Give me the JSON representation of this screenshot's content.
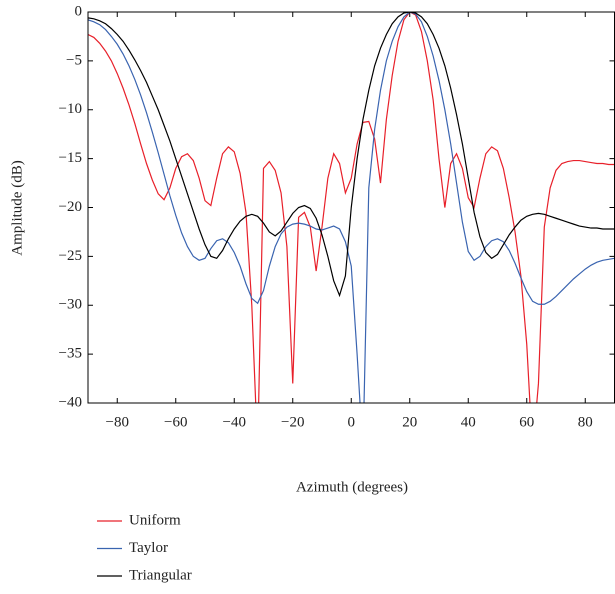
{
  "chart_data": {
    "type": "line",
    "xlabel": "Azimuth (degrees)",
    "ylabel": "Amplitude (dB)",
    "x": [
      -90,
      -88,
      -86,
      -84,
      -82,
      -80,
      -78,
      -76,
      -74,
      -72,
      -70,
      -68,
      -66,
      -64,
      -62,
      -60,
      -58,
      -56,
      -54,
      -52,
      -50,
      -48,
      -46,
      -44,
      -42,
      -40,
      -38,
      -36,
      -34,
      -32,
      -30,
      -28,
      -26,
      -24,
      -22,
      -20,
      -18,
      -16,
      -14,
      -12,
      -10,
      -8,
      -6,
      -4,
      -2,
      0,
      2,
      4,
      6,
      8,
      10,
      12,
      14,
      16,
      18,
      20,
      22,
      24,
      26,
      28,
      30,
      32,
      34,
      36,
      38,
      40,
      42,
      44,
      46,
      48,
      50,
      52,
      54,
      56,
      58,
      60,
      62,
      64,
      66,
      68,
      70,
      72,
      74,
      76,
      78,
      80,
      82,
      84,
      86,
      88,
      90
    ],
    "series": [
      {
        "name": "Uniform",
        "color": "#e8202a",
        "values": [
          -2.3,
          -2.6,
          -3.2,
          -4,
          -5,
          -6.3,
          -7.8,
          -9.5,
          -11.4,
          -13.5,
          -15.5,
          -17.2,
          -18.6,
          -19.2,
          -18,
          -16,
          -14.8,
          -14.5,
          -15.2,
          -17,
          -19.3,
          -19.8,
          -17,
          -14.5,
          -13.8,
          -14.3,
          -16.5,
          -20.5,
          -30,
          -45,
          -16,
          -15.3,
          -16.2,
          -18.5,
          -24,
          -38,
          -21,
          -20.5,
          -22,
          -26.5,
          -22,
          -17,
          -14.5,
          -15.5,
          -18.5,
          -17,
          -13.5,
          -11.3,
          -11.2,
          -13,
          -17.5,
          -11,
          -6.5,
          -3,
          -0.8,
          0,
          -0.3,
          -2,
          -5,
          -9,
          -15,
          -20,
          -15.5,
          -14.5,
          -16,
          -19,
          -20,
          -17,
          -14.5,
          -13.8,
          -14.2,
          -16,
          -19,
          -22.5,
          -27,
          -34,
          -45,
          -38,
          -22,
          -18,
          -16.2,
          -15.5,
          -15.3,
          -15.2,
          -15.2,
          -15.3,
          -15.4,
          -15.5,
          -15.5,
          -15.6,
          -15.6
        ]
      },
      {
        "name": "Taylor",
        "color": "#3a64b0",
        "values": [
          -0.8,
          -1,
          -1.3,
          -1.8,
          -2.5,
          -3.3,
          -4.3,
          -5.5,
          -6.9,
          -8.5,
          -10.3,
          -12.3,
          -14.4,
          -16.6,
          -18.8,
          -20.8,
          -22.6,
          -24,
          -25,
          -25.4,
          -25.2,
          -24.2,
          -23.4,
          -23.2,
          -23.6,
          -24.6,
          -26,
          -27.8,
          -29.3,
          -29.8,
          -28.5,
          -26,
          -24,
          -22.7,
          -22,
          -21.7,
          -21.6,
          -21.7,
          -21.9,
          -22.2,
          -22.3,
          -22.1,
          -21.9,
          -22.2,
          -23.5,
          -26,
          -35,
          -45,
          -18,
          -12,
          -8,
          -5,
          -3,
          -1.5,
          -0.5,
          0,
          -0.2,
          -1,
          -2.5,
          -4.5,
          -7,
          -10,
          -13.5,
          -17.5,
          -21.5,
          -24.5,
          -25.4,
          -25,
          -24,
          -23.4,
          -23.2,
          -23.5,
          -24.4,
          -25.7,
          -27.2,
          -28.6,
          -29.6,
          -29.9,
          -29.9,
          -29.6,
          -29.1,
          -28.5,
          -27.9,
          -27.3,
          -26.8,
          -26.3,
          -25.9,
          -25.6,
          -25.4,
          -25.3,
          -25.2
        ]
      },
      {
        "name": "Triangular",
        "color": "#000000",
        "values": [
          -0.6,
          -0.7,
          -0.9,
          -1.2,
          -1.7,
          -2.3,
          -3,
          -3.9,
          -4.9,
          -6,
          -7.2,
          -8.6,
          -10,
          -11.6,
          -13.2,
          -15,
          -16.8,
          -18.6,
          -20.4,
          -22.2,
          -23.8,
          -25,
          -25.2,
          -24.4,
          -23.2,
          -22.2,
          -21.4,
          -20.9,
          -20.7,
          -20.9,
          -21.6,
          -22.5,
          -22.9,
          -22.4,
          -21.5,
          -20.6,
          -20,
          -19.8,
          -20.1,
          -21.1,
          -22.8,
          -25,
          -27.5,
          -29,
          -27,
          -20,
          -15,
          -11,
          -8,
          -5.5,
          -3.7,
          -2.3,
          -1.2,
          -0.5,
          -0.1,
          0,
          -0.1,
          -0.5,
          -1.2,
          -2.3,
          -3.7,
          -5.5,
          -7.8,
          -10.5,
          -13.5,
          -17,
          -20.5,
          -23,
          -24.6,
          -25.2,
          -24.8,
          -23.8,
          -22.8,
          -22,
          -21.3,
          -20.9,
          -20.7,
          -20.6,
          -20.7,
          -20.9,
          -21.1,
          -21.3,
          -21.5,
          -21.7,
          -21.9,
          -22,
          -22.1,
          -22.1,
          -22.2,
          -22.2,
          -22.2
        ]
      }
    ],
    "xlim": [
      -90,
      90
    ],
    "ylim": [
      -40,
      0
    ],
    "xticks": [
      {
        "value": -80,
        "label": "−80"
      },
      {
        "value": -60,
        "label": "−60"
      },
      {
        "value": -40,
        "label": "−40"
      },
      {
        "value": -20,
        "label": "−20"
      },
      0,
      20,
      40,
      60,
      80
    ],
    "yticks": [
      0,
      {
        "value": -5,
        "label": "−5"
      },
      {
        "value": -10,
        "label": "−10"
      },
      {
        "value": -15,
        "label": "−15"
      },
      {
        "value": -20,
        "label": "−20"
      },
      {
        "value": -25,
        "label": "−25"
      },
      {
        "value": -30,
        "label": "−30"
      },
      {
        "value": -35,
        "label": "−35"
      },
      {
        "value": -40,
        "label": "−40"
      }
    ],
    "legend": "bottom-left"
  }
}
